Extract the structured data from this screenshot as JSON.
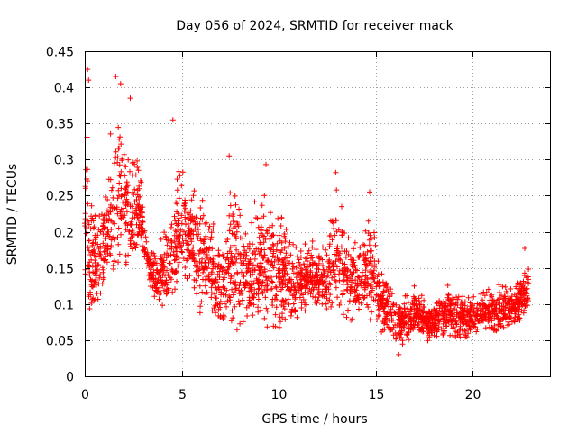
{
  "chart_data": {
    "type": "scatter",
    "title": "Day 056 of 2024, SRMTID for receiver mack",
    "xlabel": "GPS time / hours",
    "ylabel": "SRMTID / TECUs",
    "xlim": [
      0,
      24
    ],
    "ylim": [
      0,
      0.45
    ],
    "xticks": [
      0,
      5,
      10,
      15,
      20
    ],
    "yticks": [
      0,
      0.05,
      0.1,
      0.15,
      0.2,
      0.25,
      0.3,
      0.35,
      0.4,
      0.45
    ],
    "xtick_labels": [
      "0",
      "5",
      "10",
      "15",
      "20"
    ],
    "ytick_labels": [
      "0",
      "0.05",
      "0.1",
      "0.15",
      "0.2",
      "0.25",
      "0.3",
      "0.35",
      "0.4",
      "0.45"
    ],
    "grid": true,
    "marker": "+",
    "color": "#ff0000",
    "series": [
      {
        "name": "SRMTID",
        "envelope": {
          "x": [
            0.0,
            0.1,
            0.3,
            0.6,
            1.0,
            1.5,
            1.8,
            2.2,
            2.6,
            2.9,
            3.1,
            3.5,
            4.0,
            4.5,
            5.0,
            5.5,
            6.0,
            6.5,
            7.0,
            7.5,
            8.0,
            8.5,
            9.0,
            9.5,
            10.0,
            10.5,
            11.0,
            11.5,
            12.0,
            12.5,
            13.0,
            13.5,
            14.0,
            14.5,
            14.9,
            15.2,
            15.6,
            16.0,
            16.5,
            17.0,
            17.5,
            18.0,
            18.5,
            19.0,
            19.5,
            20.0,
            20.5,
            21.0,
            21.5,
            22.0,
            22.5,
            22.9
          ],
          "low": [
            0.12,
            0.1,
            0.06,
            0.08,
            0.1,
            0.11,
            0.12,
            0.14,
            0.12,
            0.16,
            0.15,
            0.1,
            0.08,
            0.09,
            0.11,
            0.12,
            0.07,
            0.07,
            0.05,
            0.06,
            0.06,
            0.07,
            0.07,
            0.06,
            0.05,
            0.07,
            0.07,
            0.08,
            0.08,
            0.07,
            0.07,
            0.06,
            0.07,
            0.06,
            0.07,
            0.06,
            0.05,
            0.04,
            0.04,
            0.05,
            0.04,
            0.05,
            0.05,
            0.04,
            0.04,
            0.05,
            0.06,
            0.05,
            0.05,
            0.06,
            0.07,
            0.08
          ],
          "high": [
            0.3,
            0.43,
            0.28,
            0.25,
            0.29,
            0.38,
            0.41,
            0.34,
            0.36,
            0.3,
            0.21,
            0.19,
            0.2,
            0.27,
            0.33,
            0.28,
            0.27,
            0.24,
            0.21,
            0.3,
            0.27,
            0.22,
            0.28,
            0.25,
            0.26,
            0.22,
            0.2,
            0.2,
            0.21,
            0.22,
            0.28,
            0.23,
            0.22,
            0.24,
            0.25,
            0.18,
            0.15,
            0.12,
            0.12,
            0.13,
            0.12,
            0.11,
            0.13,
            0.14,
            0.13,
            0.12,
            0.13,
            0.14,
            0.15,
            0.13,
            0.15,
            0.17
          ]
        },
        "n_points": 2600,
        "outliers": [
          {
            "x": 0.15,
            "y": 0.425
          },
          {
            "x": 0.2,
            "y": 0.41
          },
          {
            "x": 1.6,
            "y": 0.415
          },
          {
            "x": 1.85,
            "y": 0.405
          },
          {
            "x": 2.35,
            "y": 0.385
          },
          {
            "x": 4.55,
            "y": 0.355
          },
          {
            "x": 7.45,
            "y": 0.305
          },
          {
            "x": 9.35,
            "y": 0.293
          },
          {
            "x": 12.95,
            "y": 0.282
          },
          {
            "x": 14.7,
            "y": 0.255
          },
          {
            "x": 22.7,
            "y": 0.177
          },
          {
            "x": 16.2,
            "y": 0.03
          }
        ]
      }
    ]
  }
}
